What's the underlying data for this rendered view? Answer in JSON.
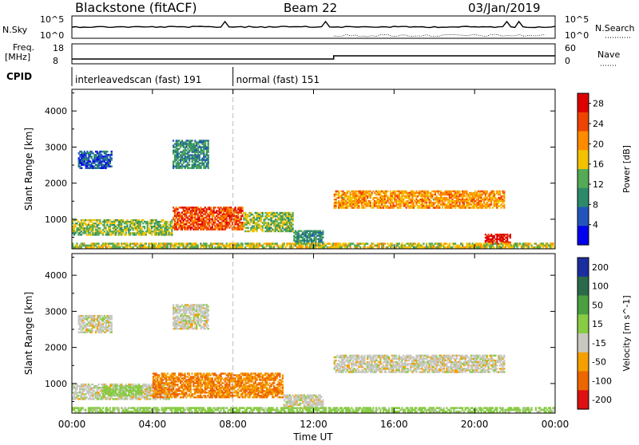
{
  "header": {
    "station": "Blackstone (fitACF)",
    "beam": "Beam 22",
    "date": "03/Jan/2019"
  },
  "status_panels": {
    "nsky_label": "N.Sky",
    "nsearch_label": "N.Search",
    "nsky_ticks": [
      "10^5",
      "10^0"
    ],
    "nsky_right_ticks": [
      "10^5",
      "10^0"
    ],
    "freq_label_top": "Freq.",
    "freq_label_bottom": "[MHz]",
    "freq_ticks": [
      "18",
      "8"
    ],
    "nave_label": "Nave",
    "nave_ticks": [
      "60",
      "0"
    ],
    "cpid_label": "CPID",
    "cpid_segments": [
      {
        "label": "interleavedscan (fast) 191",
        "start_hour": 0,
        "end_hour": 8
      },
      {
        "label": "normal (fast) 151",
        "start_hour": 8,
        "end_hour": 24
      }
    ]
  },
  "axes": {
    "x_label": "Time UT",
    "x_ticks": [
      "00:00",
      "04:00",
      "08:00",
      "12:00",
      "16:00",
      "20:00",
      "00:00"
    ],
    "x_tick_hours": [
      0,
      4,
      8,
      12,
      16,
      20,
      24
    ],
    "y_label": "Slant Range [km]",
    "y_ticks": [
      "1000",
      "2000",
      "3000",
      "4000"
    ],
    "y_tick_values": [
      1000,
      2000,
      3000,
      4000
    ],
    "ylim": [
      180,
      4600
    ]
  },
  "chart_data": [
    {
      "type": "heatmap",
      "title": "",
      "xlabel": "Time UT",
      "ylabel": "Slant Range [km]",
      "xlim": [
        0,
        24
      ],
      "ylim": [
        180,
        4600
      ],
      "colorbar": {
        "label": "Power [dB]",
        "ticks": [
          "4",
          "8",
          "12",
          "16",
          "20",
          "24",
          "28"
        ],
        "range": [
          0,
          30
        ],
        "colors": [
          "#0000ee",
          "#2255bb",
          "#2c8a6a",
          "#55aa55",
          "#f2c200",
          "#ff8c00",
          "#ee4400",
          "#dd0000"
        ]
      },
      "features": [
        {
          "start_hour": 0.0,
          "end_hour": 5.0,
          "range_low_km": 550,
          "range_high_km": 1000,
          "level": 14
        },
        {
          "start_hour": 5.0,
          "end_hour": 8.5,
          "range_low_km": 700,
          "range_high_km": 1350,
          "level": 24
        },
        {
          "start_hour": 8.5,
          "end_hour": 11.0,
          "range_low_km": 650,
          "range_high_km": 1200,
          "level": 14
        },
        {
          "start_hour": 11.0,
          "end_hour": 12.5,
          "range_low_km": 300,
          "range_high_km": 700,
          "level": 10
        },
        {
          "start_hour": 13.0,
          "end_hour": 21.5,
          "range_low_km": 1300,
          "range_high_km": 1800,
          "level": 20
        },
        {
          "start_hour": 0.3,
          "end_hour": 2.0,
          "range_low_km": 2400,
          "range_high_km": 2900,
          "level": 6
        },
        {
          "start_hour": 5.0,
          "end_hour": 6.8,
          "range_low_km": 2400,
          "range_high_km": 3200,
          "level": 10
        },
        {
          "start_hour": 20.5,
          "end_hour": 21.8,
          "range_low_km": 300,
          "range_high_km": 600,
          "level": 28
        },
        {
          "start_hour": 0.0,
          "end_hour": 24.0,
          "range_low_km": 200,
          "range_high_km": 350,
          "level": 16
        }
      ]
    },
    {
      "type": "heatmap",
      "title": "",
      "xlabel": "Time UT",
      "ylabel": "Slant Range [km]",
      "xlim": [
        0,
        24
      ],
      "ylim": [
        180,
        4600
      ],
      "colorbar": {
        "label": "Velocity [m s^-1]",
        "ticks": [
          "200",
          "100",
          "50",
          "15",
          "-15",
          "-50",
          "-100",
          "-200"
        ],
        "range": [
          -250,
          250
        ],
        "colors": [
          "#1a2ea0",
          "#2a6a4a",
          "#4aa040",
          "#88cc44",
          "#c8c8c0",
          "#f5a000",
          "#ee6600",
          "#dd1111"
        ]
      },
      "features": [
        {
          "start_hour": 0.0,
          "end_hour": 5.0,
          "range_low_km": 550,
          "range_high_km": 1000,
          "level": 0
        },
        {
          "start_hour": 1.5,
          "end_hour": 3.5,
          "range_low_km": 650,
          "range_high_km": 950,
          "level": 30
        },
        {
          "start_hour": 4.0,
          "end_hour": 10.5,
          "range_low_km": 600,
          "range_high_km": 1300,
          "level": -50
        },
        {
          "start_hour": 10.5,
          "end_hour": 12.5,
          "range_low_km": 300,
          "range_high_km": 700,
          "level": 0
        },
        {
          "start_hour": 13.0,
          "end_hour": 21.5,
          "range_low_km": 1300,
          "range_high_km": 1800,
          "level": 0
        },
        {
          "start_hour": 5.0,
          "end_hour": 6.8,
          "range_low_km": 2500,
          "range_high_km": 3200,
          "level": 0
        },
        {
          "start_hour": 0.3,
          "end_hour": 2.0,
          "range_low_km": 2400,
          "range_high_km": 2900,
          "level": 0
        },
        {
          "start_hour": 0.0,
          "end_hour": 24.0,
          "range_low_km": 200,
          "range_high_km": 350,
          "level": 30
        }
      ]
    }
  ]
}
